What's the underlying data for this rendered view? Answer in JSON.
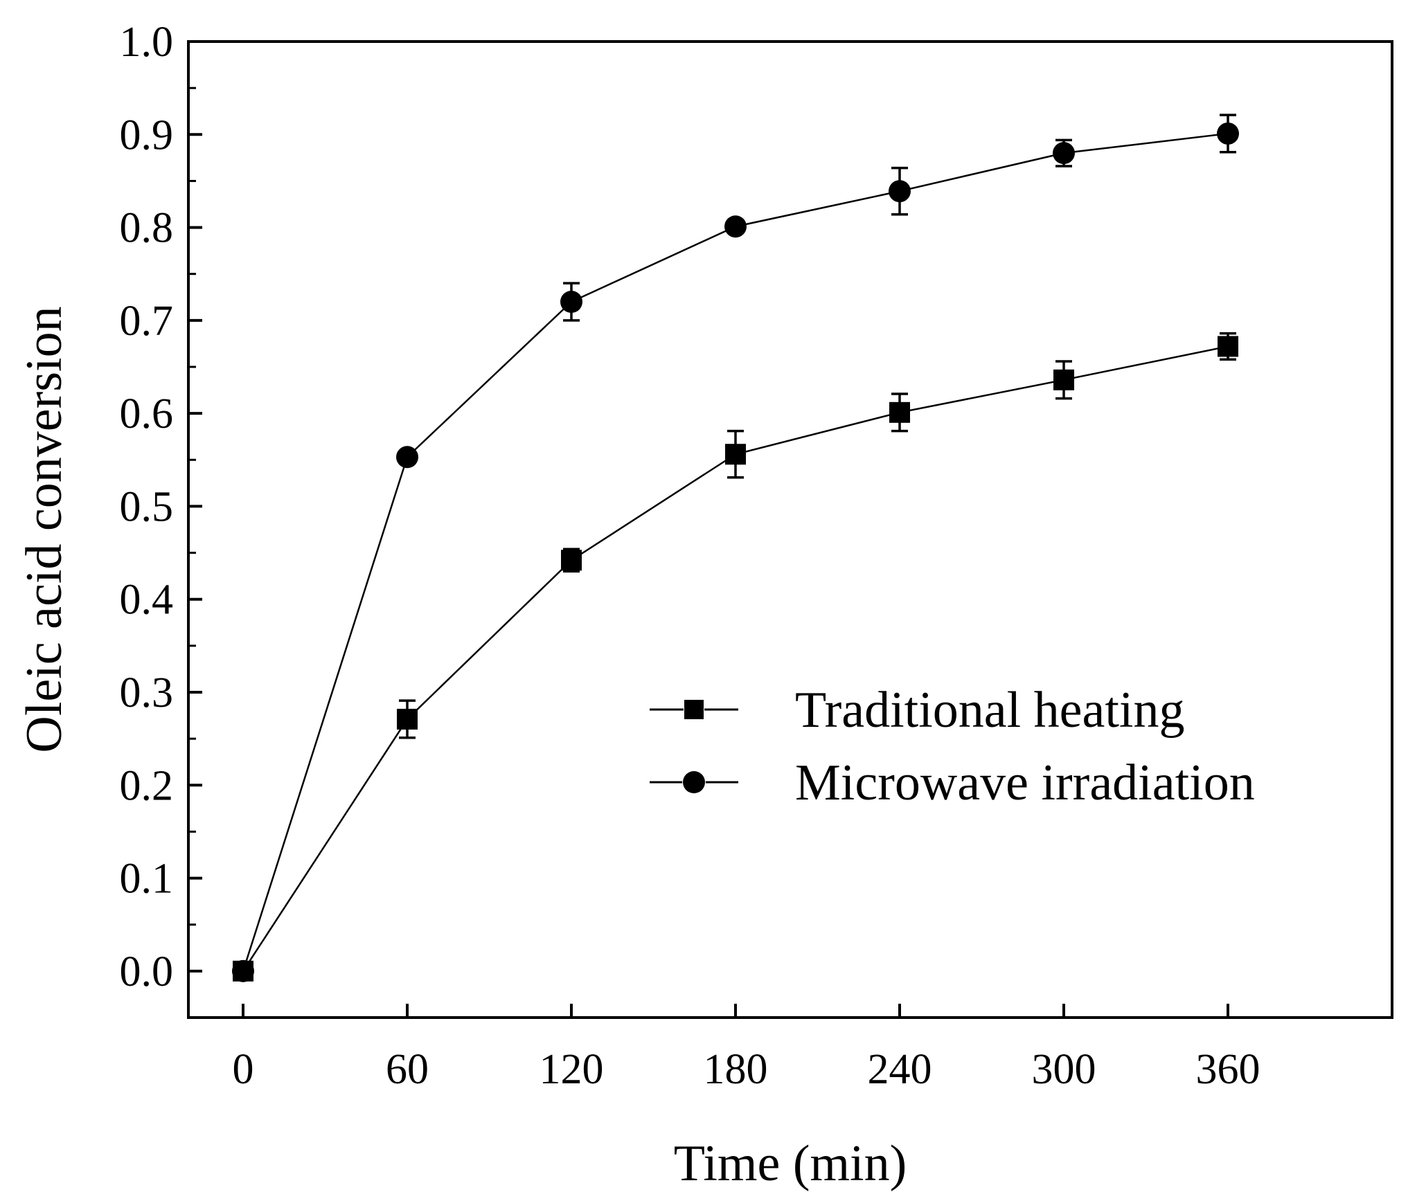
{
  "chart_data": {
    "type": "line",
    "xlabel": "Time (min)",
    "ylabel": "Oleic acid conversion",
    "xlim": [
      -20,
      420
    ],
    "ylim": [
      -0.05,
      1.0
    ],
    "xticks": [
      0,
      60,
      120,
      180,
      240,
      300,
      360
    ],
    "xtick_labels": [
      "0",
      "60",
      "120",
      "180",
      "240",
      "300",
      "360"
    ],
    "yticks": [
      0.0,
      0.1,
      0.2,
      0.3,
      0.4,
      0.5,
      0.6,
      0.7,
      0.8,
      0.9,
      1.0
    ],
    "ytick_labels": [
      "0.0",
      "0.1",
      "0.2",
      "0.3",
      "0.4",
      "0.5",
      "0.6",
      "0.7",
      "0.8",
      "0.9",
      "1.0"
    ],
    "x": [
      0,
      60,
      120,
      180,
      240,
      300,
      360
    ],
    "legend_position": "center-right",
    "series": [
      {
        "name": "Traditional heating",
        "marker": "square",
        "values": [
          0.0,
          0.271,
          0.442,
          0.556,
          0.601,
          0.636,
          0.672
        ],
        "errors": [
          0.0,
          0.02,
          0.012,
          0.025,
          0.02,
          0.02,
          0.014
        ]
      },
      {
        "name": "Microwave irradiation",
        "marker": "circle",
        "values": [
          0.0,
          0.553,
          0.72,
          0.801,
          0.839,
          0.88,
          0.901
        ],
        "errors": [
          0.0,
          0.004,
          0.02,
          0.004,
          0.025,
          0.014,
          0.02
        ]
      }
    ]
  }
}
